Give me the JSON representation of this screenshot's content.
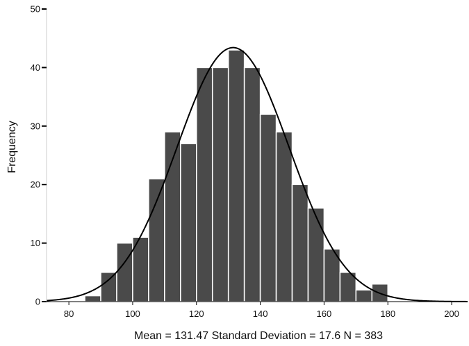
{
  "chart_data": {
    "type": "bar",
    "title": "",
    "xlabel": "",
    "ylabel": "Frequency",
    "xlim": [
      73,
      205
    ],
    "ylim": [
      0,
      50
    ],
    "bin_width": 5,
    "bins": [
      {
        "x0": 85,
        "x1": 90,
        "count": 1
      },
      {
        "x0": 90,
        "x1": 95,
        "count": 5
      },
      {
        "x0": 95,
        "x1": 100,
        "count": 10
      },
      {
        "x0": 100,
        "x1": 105,
        "count": 11
      },
      {
        "x0": 105,
        "x1": 110,
        "count": 21
      },
      {
        "x0": 110,
        "x1": 115,
        "count": 29
      },
      {
        "x0": 115,
        "x1": 120,
        "count": 27
      },
      {
        "x0": 120,
        "x1": 125,
        "count": 40
      },
      {
        "x0": 125,
        "x1": 130,
        "count": 40
      },
      {
        "x0": 130,
        "x1": 135,
        "count": 43
      },
      {
        "x0": 135,
        "x1": 140,
        "count": 40
      },
      {
        "x0": 140,
        "x1": 145,
        "count": 32
      },
      {
        "x0": 145,
        "x1": 150,
        "count": 29
      },
      {
        "x0": 150,
        "x1": 155,
        "count": 20
      },
      {
        "x0": 155,
        "x1": 160,
        "count": 16
      },
      {
        "x0": 160,
        "x1": 165,
        "count": 9
      },
      {
        "x0": 165,
        "x1": 170,
        "count": 5
      },
      {
        "x0": 170,
        "x1": 175,
        "count": 2
      },
      {
        "x0": 175,
        "x1": 180,
        "count": 3
      }
    ],
    "x_ticks": [
      "80",
      "100",
      "120",
      "140",
      "160",
      "180",
      "200"
    ],
    "y_ticks": [
      "0",
      "10",
      "20",
      "30",
      "40",
      "50"
    ],
    "normal_curve": {
      "mean": 131.47,
      "sd": 17.6,
      "n": 383
    },
    "stats_label": "Mean = 131.47 Standard Deviation = 17.6 N = 383",
    "grid": false,
    "legend": "none",
    "colors": {
      "bar": "#4a4a4a",
      "bar_edge": "#ffffff",
      "curve": "#000000",
      "axis": "#000000"
    }
  }
}
